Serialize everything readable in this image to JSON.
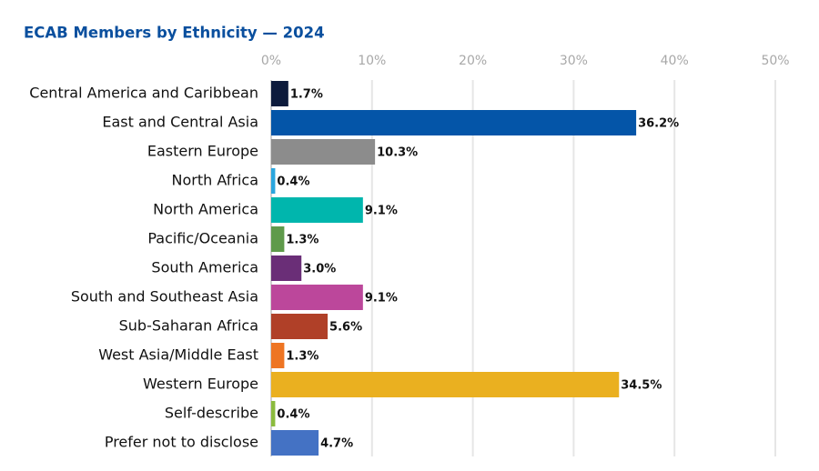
{
  "chart_data": {
    "type": "hbar",
    "title": "ECAB Members by Ethnicity — 2024",
    "categories": [
      "Central America and Caribbean",
      "East and Central Asia",
      "Eastern Europe",
      "North Africa",
      "North America",
      "Pacific/Oceania",
      "South America",
      "South and Southeast Asia",
      "Sub-Saharan Africa",
      "West Asia/Middle East",
      "Western Europe",
      "Self-describe",
      "Prefer not to disclose"
    ],
    "values": [
      1.7,
      36.2,
      10.3,
      0.4,
      9.1,
      1.3,
      3.0,
      9.1,
      5.6,
      1.3,
      34.5,
      0.4,
      4.7
    ],
    "value_labels": [
      "1.7%",
      "36.2%",
      "10.3%",
      "0.4%",
      "9.1%",
      "1.3%",
      "3.0%",
      "9.1%",
      "5.6%",
      "1.3%",
      "34.5%",
      "0.4%",
      "4.7%"
    ],
    "colors": [
      "#0d1b3c",
      "#0455a8",
      "#8c8c8c",
      "#2aa6de",
      "#00b6ad",
      "#5f9a4b",
      "#6a2e77",
      "#bc479b",
      "#b04028",
      "#ee7523",
      "#eab020",
      "#8bbb3e",
      "#4472c4"
    ],
    "xlim": [
      0,
      50
    ],
    "xticks": [
      {
        "value": 0,
        "label": "0%"
      },
      {
        "value": 10,
        "label": "10%"
      },
      {
        "value": 20,
        "label": "20%"
      },
      {
        "value": 30,
        "label": "30%"
      },
      {
        "value": 40,
        "label": "40%"
      },
      {
        "value": 50,
        "label": "50%"
      }
    ],
    "grid": true
  }
}
